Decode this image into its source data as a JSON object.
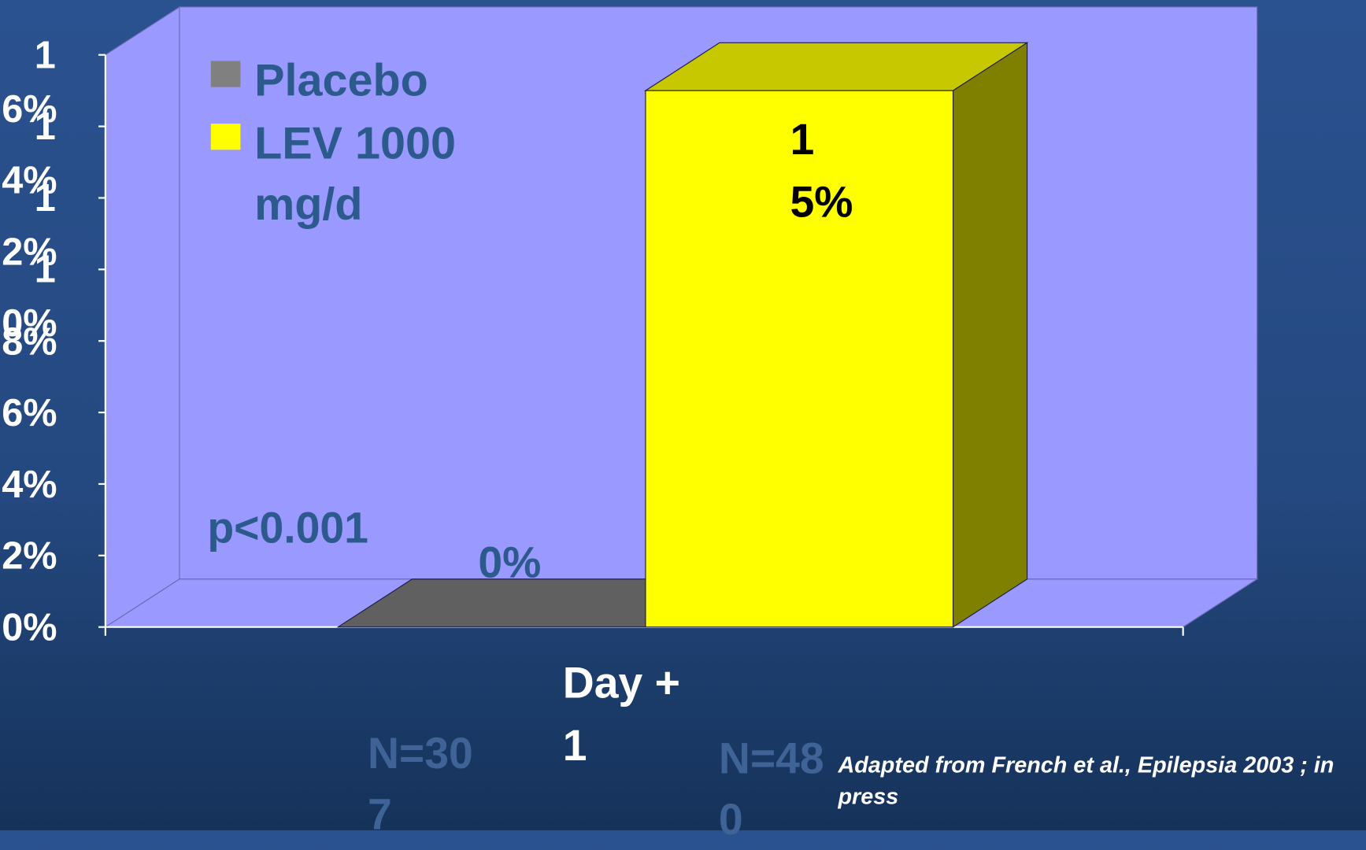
{
  "chart_data": {
    "type": "bar3d",
    "categories": [
      "Day + 1"
    ],
    "series": [
      {
        "name": "Placebo",
        "color": "#808080",
        "values": [
          0
        ],
        "value_labels": [
          "0%"
        ],
        "label_color": "#2d5a8c",
        "n": "N=307"
      },
      {
        "name": "LEV 1000 mg/d",
        "color": "#ffff00",
        "values": [
          15
        ],
        "value_labels": [
          "15%"
        ],
        "label_color": "#000000",
        "n": "N=480"
      }
    ],
    "ylim": [
      0,
      16
    ],
    "yticks": [
      {
        "value": 0,
        "label": "0%"
      },
      {
        "value": 2,
        "label": "2%"
      },
      {
        "value": 4,
        "label": "4%"
      },
      {
        "value": 6,
        "label": "6%"
      },
      {
        "value": 8,
        "label": "8%"
      },
      {
        "value": 10,
        "label": "10%"
      },
      {
        "value": 12,
        "label": "12%"
      },
      {
        "value": 14,
        "label": "14%"
      },
      {
        "value": 16,
        "label": "16%"
      }
    ],
    "annotations": [
      "p<0.001",
      "Adapted from French et al., Epilepsia 2003 ; in press"
    ],
    "wall_color": "#9999ff"
  }
}
